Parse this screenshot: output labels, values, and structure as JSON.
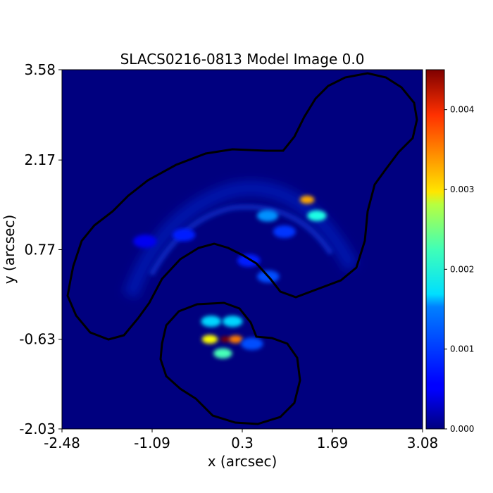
{
  "chart_data": {
    "type": "heatmap",
    "title": "SLACS0216-0813 Model Image 0.0",
    "xlabel": "x (arcsec)",
    "ylabel": "y (arcsec)",
    "xlim": [
      -2.48,
      3.08
    ],
    "ylim": [
      -2.03,
      3.58
    ],
    "x_ticks": [
      "-2.48",
      "-1.09",
      "0.3",
      "1.69",
      "3.08"
    ],
    "y_ticks": [
      "3.58",
      "2.17",
      "0.77",
      "-0.63",
      "-2.03"
    ],
    "colormap": "jet",
    "colorbar": {
      "range": [
        0.0,
        0.0045
      ],
      "ticks": [
        "0.000",
        "0.001",
        "0.002",
        "0.003",
        "0.004"
      ]
    },
    "mask_outline_color": "#000000",
    "background_color": "#00007f",
    "arc_emission": [
      {
        "x": 0.69,
        "y": 1.3,
        "value": 0.0012
      },
      {
        "x": 1.3,
        "y": 1.55,
        "value": 0.0032
      },
      {
        "x": 1.45,
        "y": 1.3,
        "value": 0.0018
      },
      {
        "x": 0.95,
        "y": 1.05,
        "value": 0.0008
      },
      {
        "x": 0.7,
        "y": 0.35,
        "value": 0.0009
      },
      {
        "x": 0.4,
        "y": 0.6,
        "value": 0.0007
      },
      {
        "x": -0.6,
        "y": 1.0,
        "value": 0.0007
      },
      {
        "x": -1.2,
        "y": 0.9,
        "value": 0.0005
      }
    ],
    "central_emission": [
      {
        "x": 0.04,
        "y": -0.63,
        "value": 0.0045
      },
      {
        "x": 0.2,
        "y": -0.63,
        "value": 0.0034
      },
      {
        "x": -0.2,
        "y": -0.63,
        "value": 0.0028
      },
      {
        "x": 0.0,
        "y": -0.85,
        "value": 0.002
      },
      {
        "x": -0.18,
        "y": -0.35,
        "value": 0.0015
      },
      {
        "x": 0.15,
        "y": -0.35,
        "value": 0.0015
      },
      {
        "x": 0.45,
        "y": -0.7,
        "value": 0.0009
      }
    ]
  }
}
